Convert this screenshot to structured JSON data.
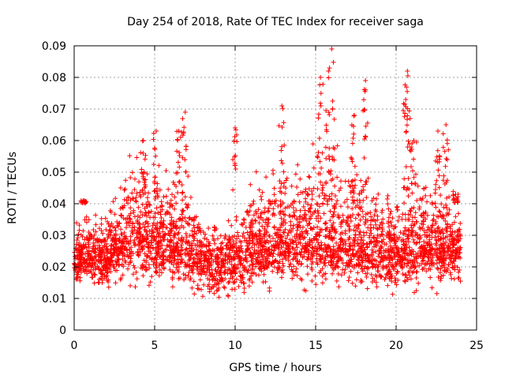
{
  "chart_data": {
    "type": "scatter",
    "title": "Day 254 of 2018, Rate Of TEC Index for receiver saga",
    "xlabel": "GPS time / hours",
    "ylabel": "ROTI / TECUs",
    "xlim": [
      0,
      25
    ],
    "ylim": [
      0,
      0.09
    ],
    "xticks": [
      0,
      5,
      10,
      15,
      20,
      25
    ],
    "xtick_labels": [
      "0",
      "5",
      "10",
      "15",
      "20",
      "25"
    ],
    "yticks": [
      0,
      0.01,
      0.02,
      0.03,
      0.04,
      0.05,
      0.06,
      0.07,
      0.08,
      0.09
    ],
    "ytick_labels": [
      "0",
      "0.01",
      "0.02",
      "0.03",
      "0.04",
      "0.05",
      "0.06",
      "0.07",
      "0.08",
      "0.09"
    ],
    "grid": true,
    "marker": "plus",
    "color": "#ff0000",
    "series": [
      {
        "name": "ROTI",
        "x_range": [
          0,
          24
        ],
        "envelope": {
          "hours": [
            0,
            1,
            2,
            3,
            4,
            5,
            6,
            7,
            8,
            9,
            10,
            11,
            12,
            13,
            14,
            15,
            16,
            17,
            18,
            19,
            20,
            21,
            22,
            23,
            24
          ],
          "median": [
            0.022,
            0.023,
            0.022,
            0.028,
            0.03,
            0.028,
            0.027,
            0.026,
            0.022,
            0.021,
            0.022,
            0.025,
            0.026,
            0.028,
            0.028,
            0.028,
            0.026,
            0.026,
            0.026,
            0.024,
            0.024,
            0.026,
            0.026,
            0.026,
            0.026
          ],
          "upper": [
            0.034,
            0.035,
            0.034,
            0.05,
            0.057,
            0.052,
            0.05,
            0.045,
            0.034,
            0.033,
            0.036,
            0.046,
            0.05,
            0.055,
            0.05,
            0.06,
            0.058,
            0.052,
            0.055,
            0.045,
            0.04,
            0.05,
            0.048,
            0.045,
            0.04
          ],
          "lower": [
            0.013,
            0.013,
            0.012,
            0.013,
            0.012,
            0.013,
            0.012,
            0.011,
            0.01,
            0.009,
            0.01,
            0.012,
            0.013,
            0.014,
            0.014,
            0.013,
            0.013,
            0.012,
            0.012,
            0.011,
            0.011,
            0.012,
            0.012,
            0.013,
            0.013
          ]
        },
        "peaks": [
          {
            "x": 0.6,
            "y": 0.041
          },
          {
            "x": 4.3,
            "y": 0.06
          },
          {
            "x": 5.1,
            "y": 0.063
          },
          {
            "x": 6.5,
            "y": 0.063
          },
          {
            "x": 6.9,
            "y": 0.069
          },
          {
            "x": 10.0,
            "y": 0.064
          },
          {
            "x": 12.9,
            "y": 0.071
          },
          {
            "x": 15.3,
            "y": 0.08
          },
          {
            "x": 15.8,
            "y": 0.082
          },
          {
            "x": 16.0,
            "y": 0.089
          },
          {
            "x": 17.4,
            "y": 0.068
          },
          {
            "x": 18.1,
            "y": 0.079
          },
          {
            "x": 20.7,
            "y": 0.082
          },
          {
            "x": 20.6,
            "y": 0.073
          },
          {
            "x": 21.1,
            "y": 0.06
          },
          {
            "x": 22.6,
            "y": 0.063
          },
          {
            "x": 23.1,
            "y": 0.065
          },
          {
            "x": 23.7,
            "y": 0.043
          }
        ]
      }
    ]
  }
}
